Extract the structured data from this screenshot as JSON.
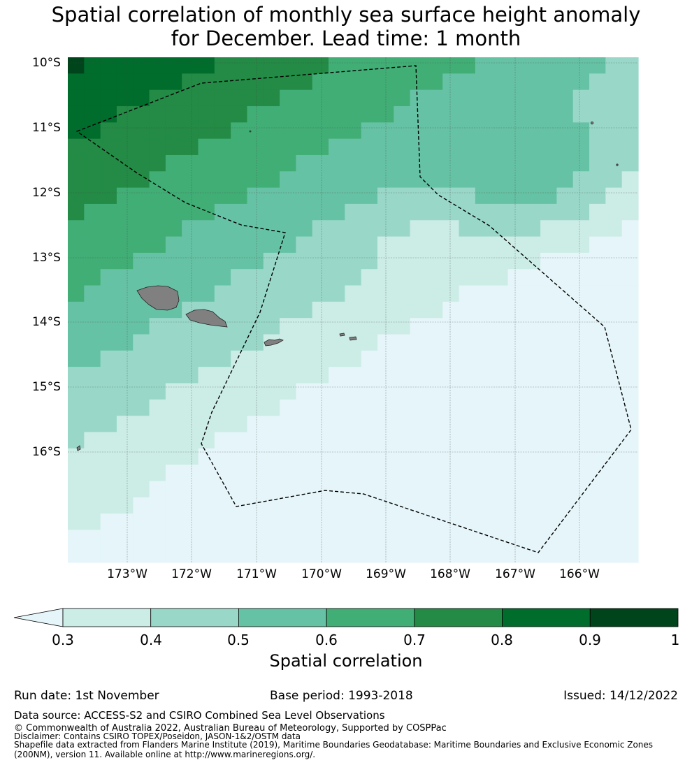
{
  "title_line1": "Spatial correlation of monthly sea surface height anomaly",
  "title_line2": "for December. Lead time: 1 month",
  "lat_labels": [
    "10°S",
    "11°S",
    "12°S",
    "13°S",
    "14°S",
    "15°S",
    "16°S"
  ],
  "lon_labels": [
    "173°W",
    "172°W",
    "171°W",
    "170°W",
    "169°W",
    "168°W",
    "167°W",
    "166°W"
  ],
  "colorbar": {
    "ticks": [
      "0.3",
      "0.4",
      "0.5",
      "0.6",
      "0.7",
      "0.8",
      "0.9",
      "1"
    ],
    "colors": [
      "#ccece6",
      "#99d8c9",
      "#66c2a4",
      "#41ae76",
      "#238b45",
      "#006d2c",
      "#00441b"
    ],
    "under_color": "#e5f5f9",
    "label": "Spatial correlation"
  },
  "colors": {
    "land": "#808080",
    "boundary": "#000000"
  },
  "info": {
    "run_date": "Run date: 1st November",
    "base_period": "Base period: 1993-2018",
    "issued": "Issued: 14/12/2022"
  },
  "credits": {
    "data_source": "Data source: ACCESS-S2 and CSIRO Combined Sea Level Observations",
    "copyright": "© Commonwealth of Australia 2022, Australian Bureau of Meteorology, Supported by COSPPac",
    "disclaimer": "Disclaimer: Contains CSIRO TOPEX/Poseidon, JASON-1&2/OSTM data",
    "shapefile_1": "Shapefile data extracted from Flanders Marine Institute (2019), Maritime Boundaries Geodatabase: Maritime Boundaries and Exclusive Economic Zones",
    "shapefile_2": "(200NM), version 11. Available online at http://www.marineregions.org/."
  }
}
